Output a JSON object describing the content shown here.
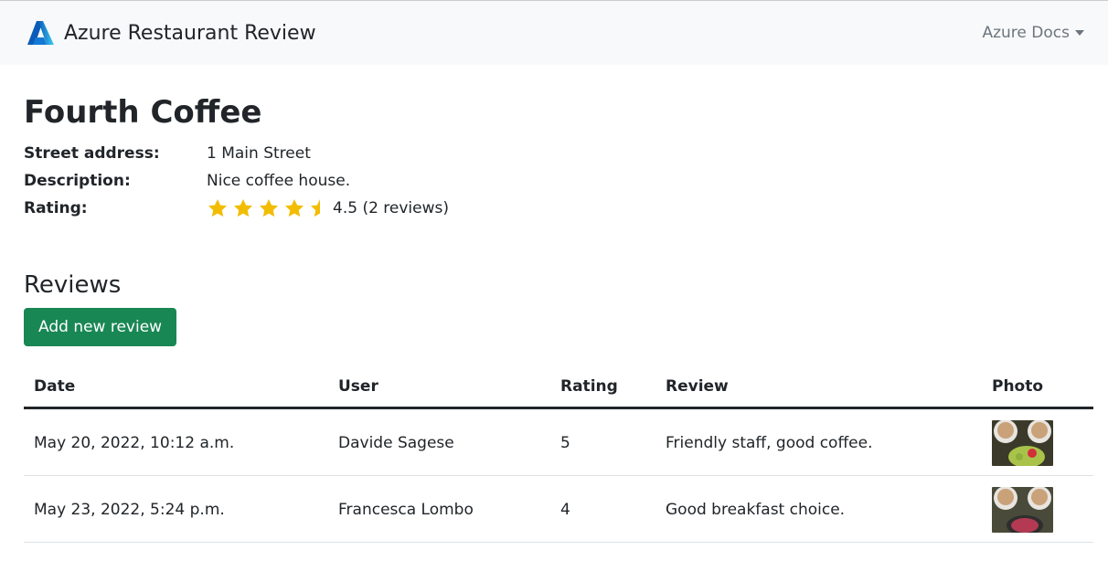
{
  "header": {
    "title": "Azure Restaurant Review",
    "docs_menu": "Azure Docs",
    "logo_icon": "azure-logo-icon"
  },
  "restaurant": {
    "name": "Fourth Coffee",
    "address_label": "Street address:",
    "address": "1 Main Street",
    "description_label": "Description:",
    "description": "Nice coffee house.",
    "rating_label": "Rating:",
    "rating": 4.5,
    "rating_text": "4.5 (2 reviews)",
    "star_color": "#f2bd00"
  },
  "reviews": {
    "heading": "Reviews",
    "add_button": "Add new review",
    "button_color": "#198754",
    "columns": [
      "Date",
      "User",
      "Rating",
      "Review",
      "Photo"
    ],
    "rows": [
      {
        "date": "May 20, 2022, 10:12 a.m.",
        "user": "Davide Sagese",
        "rating": "5",
        "review": "Friendly staff, good coffee."
      },
      {
        "date": "May 23, 2022, 5:24 p.m.",
        "user": "Francesca Lombo",
        "rating": "4",
        "review": "Good breakfast choice."
      }
    ]
  }
}
